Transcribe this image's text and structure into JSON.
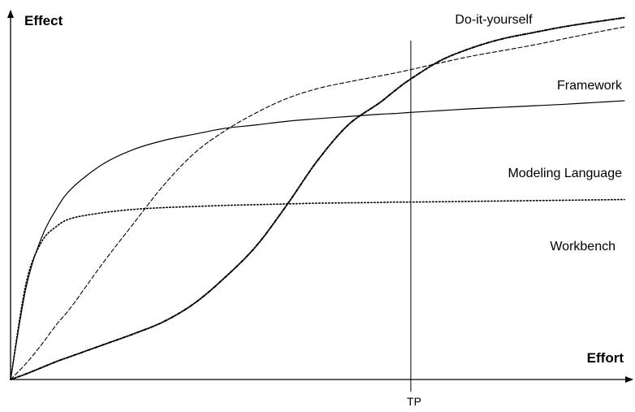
{
  "chart_data": {
    "type": "line",
    "title": "",
    "xlabel": "Effort",
    "ylabel": "Effect",
    "xlim": [
      0,
      100
    ],
    "ylim": [
      0,
      100
    ],
    "grid": false,
    "legend": "inline labels at right",
    "x_tick_labels": [
      "TP"
    ],
    "reference_lines": [
      {
        "axis": "x",
        "value": 65.2,
        "label": "TP"
      }
    ],
    "x": [
      0,
      2.5,
      5,
      7.5,
      10,
      15,
      20,
      25,
      30,
      35,
      40,
      45,
      50,
      55,
      60,
      62.5,
      65,
      70,
      75,
      80,
      85,
      90,
      95,
      100
    ],
    "series": [
      {
        "name": "Do-it-yourself",
        "style": "dashdot",
        "values": [
          0,
          1.5,
          3.2,
          4.9,
          6.4,
          9.4,
          12.4,
          15.8,
          20.8,
          27.9,
          36.3,
          47.5,
          59.6,
          69.3,
          75.2,
          78.5,
          81.6,
          86.8,
          90.2,
          92.7,
          94.4,
          96.0,
          97.3,
          98.5
        ]
      },
      {
        "name": "Framework",
        "style": "dashed",
        "values": [
          0,
          4.3,
          9.4,
          15.0,
          20.0,
          31.6,
          42.4,
          53.0,
          61.7,
          67.8,
          72.6,
          76.5,
          79.2,
          81.0,
          82.6,
          83.4,
          84.3,
          86.2,
          88.0,
          89.5,
          91.0,
          92.7,
          94.4,
          96.0
        ]
      },
      {
        "name": "Modeling Language",
        "style": "solid",
        "values": [
          0,
          24.8,
          38.4,
          46.5,
          52.1,
          58.6,
          62.6,
          65.1,
          66.8,
          68.4,
          69.3,
          70.3,
          71.0,
          71.6,
          72.2,
          72.4,
          72.7,
          73.2,
          73.7,
          74.1,
          74.5,
          74.9,
          75.4,
          75.9
        ]
      },
      {
        "name": "Workbench",
        "style": "dotted",
        "values": [
          0,
          26.0,
          37.3,
          41.7,
          43.9,
          45.4,
          46.3,
          46.8,
          47.1,
          47.4,
          47.6,
          47.8,
          48.0,
          48.1,
          48.2,
          48.3,
          48.3,
          48.4,
          48.5,
          48.6,
          48.7,
          48.8,
          48.9,
          49.0
        ]
      }
    ]
  }
}
